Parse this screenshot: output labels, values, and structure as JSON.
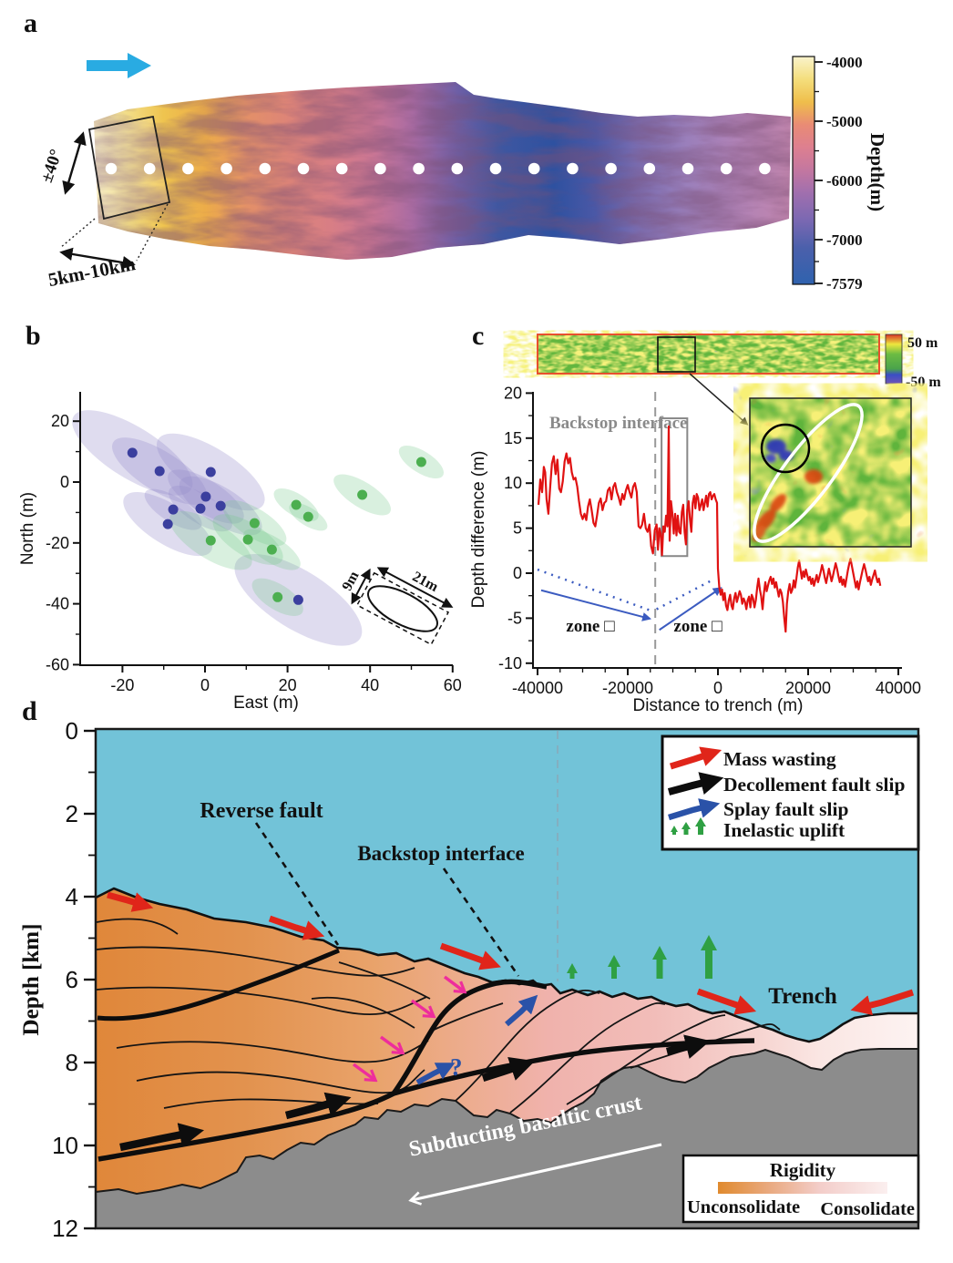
{
  "figure_labels": {
    "a": "a",
    "b": "b",
    "c": "c",
    "d": "d"
  },
  "panel_a": {
    "angle_label": "±40°",
    "width_label": "5km-10km",
    "transect_dots": 18,
    "colorbar": {
      "title": "Depth(m)",
      "tick_labels": [
        "-4000",
        "-5000",
        "-6000",
        "-7000",
        "-7579"
      ]
    }
  },
  "panel_b": {
    "xlabel": "East (m)",
    "ylabel": "North (m)",
    "x_tick_labels": [
      "-20",
      "0",
      "20",
      "40",
      "60"
    ],
    "y_tick_labels": [
      "20",
      "0",
      "-20",
      "-40",
      "-60"
    ],
    "inset": {
      "short_axis_label": "9m",
      "long_axis_label": "21m"
    }
  },
  "panel_c": {
    "strip_colorbar": {
      "top_label": "50 m",
      "bottom_label": "-50 m"
    },
    "backstop_label": "Backstop interface",
    "zone_left_label": "zone □",
    "zone_right_label": "zone □",
    "xlabel": "Distance to trench (m)",
    "ylabel": "Depth difference (m)",
    "x_tick_labels": [
      "-40000",
      "-20000",
      "0",
      "20000",
      "40000"
    ],
    "y_tick_labels": [
      "20",
      "15",
      "10",
      "5",
      "0",
      "-5",
      "-10"
    ]
  },
  "panel_d": {
    "ylabel": "Depth [km]",
    "depth_tick_labels": [
      "0",
      "2",
      "4",
      "6",
      "8",
      "10",
      "12"
    ],
    "legend": {
      "items": [
        {
          "label": "Mass wasting",
          "color": "#e0251a"
        },
        {
          "label": "Decollement fault slip",
          "color": "#0d0d0d"
        },
        {
          "label": "Splay fault slip",
          "color": "#2a52a8"
        },
        {
          "label": "Inelastic uplift",
          "color": "#2fa043"
        }
      ]
    },
    "reverse_fault_label": "Reverse fault",
    "backstop_label": "Backstop interface",
    "trench_label": "Trench",
    "subducting_label": "Subducting basaltic crust",
    "uncertainty_label": "?",
    "rigidity": {
      "title": "Rigidity",
      "left_label": "Unconsolidate",
      "right_label": "Consolidate"
    }
  },
  "chart_data": [
    {
      "type": "scatter",
      "panel": "b",
      "xlabel": "East (m)",
      "ylabel": "North (m)",
      "xlim": [
        -30,
        60
      ],
      "ylim": [
        -60,
        30
      ],
      "grid": false,
      "ellipse_angle_deg": 32,
      "series": [
        {
          "name": "blue events",
          "color": "#3b3f9e",
          "ellipse_color": "rgba(148,138,202,0.30)",
          "points": [
            {
              "x": -17.6,
              "y": 9.6,
              "major_m": 19,
              "minor_m": 7
            },
            {
              "x": -11.0,
              "y": 3.6,
              "major_m": 15,
              "minor_m": 5.5
            },
            {
              "x": 1.4,
              "y": 3.3,
              "major_m": 17,
              "minor_m": 6.5
            },
            {
              "x": 0.2,
              "y": -4.8,
              "major_m": 12,
              "minor_m": 4.5
            },
            {
              "x": -1.1,
              "y": -8.7,
              "major_m": 10,
              "minor_m": 4
            },
            {
              "x": -7.7,
              "y": -9.0,
              "major_m": 9,
              "minor_m": 3.5
            },
            {
              "x": -9.0,
              "y": -13.8,
              "major_m": 14,
              "minor_m": 5.5
            },
            {
              "x": 3.8,
              "y": -7.8,
              "major_m": 13,
              "minor_m": 5
            },
            {
              "x": 22.6,
              "y": -38.7,
              "major_m": 20,
              "minor_m": 8
            }
          ]
        },
        {
          "name": "green events",
          "color": "#4caf50",
          "ellipse_color": "rgba(120,200,140,0.28)",
          "points": [
            {
              "x": 1.4,
              "y": -19.2,
              "major_m": 13,
              "minor_m": 5
            },
            {
              "x": 10.4,
              "y": -18.9,
              "major_m": 11,
              "minor_m": 4.5
            },
            {
              "x": 12.0,
              "y": -13.5,
              "major_m": 10,
              "minor_m": 4
            },
            {
              "x": 16.2,
              "y": -22.2,
              "major_m": 9,
              "minor_m": 3.5
            },
            {
              "x": 22.1,
              "y": -7.5,
              "major_m": 7,
              "minor_m": 3
            },
            {
              "x": 25.0,
              "y": -11.4,
              "major_m": 6,
              "minor_m": 2.5
            },
            {
              "x": 17.6,
              "y": -37.8,
              "major_m": 8,
              "minor_m": 3.5
            },
            {
              "x": 38.1,
              "y": -4.2,
              "major_m": 9,
              "minor_m": 3.5
            },
            {
              "x": 52.4,
              "y": 6.6,
              "major_m": 7,
              "minor_m": 3
            }
          ]
        }
      ]
    },
    {
      "type": "line",
      "panel": "c",
      "xlabel": "Distance to trench (m)",
      "ylabel": "Depth difference (m)",
      "xlim": [
        -42000,
        42000
      ],
      "ylim": [
        -10,
        20
      ],
      "line_color": "#e01212",
      "points": [
        [
          -39800,
          7.6
        ],
        [
          -39400,
          10.4
        ],
        [
          -39000,
          9
        ],
        [
          -38600,
          11.8
        ],
        [
          -38300,
          11.2
        ],
        [
          -38000,
          8.2
        ],
        [
          -37600,
          6.6
        ],
        [
          -37200,
          9.6
        ],
        [
          -36800,
          12.2
        ],
        [
          -36400,
          13
        ],
        [
          -36000,
          11
        ],
        [
          -35600,
          12.6
        ],
        [
          -35200,
          9.4
        ],
        [
          -34800,
          9
        ],
        [
          -34400,
          10.2
        ],
        [
          -34000,
          12.4
        ],
        [
          -33600,
          13.3
        ],
        [
          -33200,
          12.2
        ],
        [
          -32800,
          12.8
        ],
        [
          -32400,
          11.2
        ],
        [
          -32000,
          10.4
        ],
        [
          -31600,
          10.6
        ],
        [
          -31200,
          9.6
        ],
        [
          -30800,
          8
        ],
        [
          -30400,
          6.6
        ],
        [
          -30000,
          6
        ],
        [
          -29600,
          6.6
        ],
        [
          -29200,
          5.9
        ],
        [
          -28800,
          7.4
        ],
        [
          -28400,
          8.2
        ],
        [
          -28000,
          7
        ],
        [
          -27600,
          5.6
        ],
        [
          -27200,
          5.2
        ],
        [
          -26800,
          6.4
        ],
        [
          -26400,
          7.8
        ],
        [
          -26000,
          8.3
        ],
        [
          -25600,
          7
        ],
        [
          -25200,
          7.8
        ],
        [
          -24800,
          8
        ],
        [
          -24400,
          9.2
        ],
        [
          -24000,
          9.5
        ],
        [
          -23600,
          8.2
        ],
        [
          -23200,
          9.6
        ],
        [
          -22800,
          10
        ],
        [
          -22400,
          9
        ],
        [
          -22000,
          8.4
        ],
        [
          -21600,
          7.6
        ],
        [
          -21200,
          8.8
        ],
        [
          -20800,
          8.2
        ],
        [
          -20400,
          9.2
        ],
        [
          -20000,
          9.8
        ],
        [
          -19600,
          9
        ],
        [
          -19200,
          8.4
        ],
        [
          -18800,
          9.6
        ],
        [
          -18400,
          10
        ],
        [
          -18000,
          9
        ],
        [
          -17600,
          5.2
        ],
        [
          -17200,
          5
        ],
        [
          -16800,
          5.4
        ],
        [
          -16400,
          6.6
        ],
        [
          -16000,
          5
        ],
        [
          -15600,
          4.6
        ],
        [
          -15200,
          5.4
        ],
        [
          -14800,
          3
        ],
        [
          -14400,
          2.2
        ],
        [
          -14000,
          4.8
        ],
        [
          -13600,
          5.4
        ],
        [
          -13300,
          2.6
        ],
        [
          -13000,
          5
        ],
        [
          -12700,
          4.4
        ],
        [
          -12400,
          2
        ],
        [
          -12100,
          5.2
        ],
        [
          -11800,
          4.6
        ],
        [
          -11500,
          6.4
        ],
        [
          -11200,
          5.2
        ],
        [
          -10900,
          16.3
        ],
        [
          -10700,
          3.6
        ],
        [
          -10400,
          8
        ],
        [
          -10100,
          6.6
        ],
        [
          -9800,
          4.4
        ],
        [
          -9500,
          6.6
        ],
        [
          -9200,
          4.2
        ],
        [
          -8900,
          6.4
        ],
        [
          -8600,
          4.6
        ],
        [
          -8300,
          4.4
        ],
        [
          -8000,
          6.8
        ],
        [
          -7700,
          7.6
        ],
        [
          -7400,
          4.6
        ],
        [
          -7100,
          3.2
        ],
        [
          -6800,
          7
        ],
        [
          -6500,
          8
        ],
        [
          -6200,
          6
        ],
        [
          -5900,
          4.6
        ],
        [
          -5600,
          7.8
        ],
        [
          -5300,
          8.6
        ],
        [
          -5000,
          7.2
        ],
        [
          -4700,
          8.8
        ],
        [
          -4400,
          8.4
        ],
        [
          -4100,
          7
        ],
        [
          -3800,
          7.6
        ],
        [
          -3500,
          8.2
        ],
        [
          -3200,
          7
        ],
        [
          -2900,
          7.8
        ],
        [
          -2600,
          8.6
        ],
        [
          -2300,
          7.4
        ],
        [
          -2000,
          8.8
        ],
        [
          -1700,
          9
        ],
        [
          -1400,
          8.2
        ],
        [
          -1100,
          8.6
        ],
        [
          -800,
          8.8
        ],
        [
          -500,
          8.2
        ],
        [
          -200,
          7.8
        ],
        [
          0,
          0.5
        ],
        [
          300,
          -1.6
        ],
        [
          600,
          -2.4
        ],
        [
          900,
          -1.8
        ],
        [
          1200,
          -3
        ],
        [
          1500,
          -2.2
        ],
        [
          1800,
          -3.6
        ],
        [
          2100,
          -4.1
        ],
        [
          2400,
          -3
        ],
        [
          2700,
          -2.4
        ],
        [
          3000,
          -3.6
        ],
        [
          3300,
          -4
        ],
        [
          3600,
          -2.8
        ],
        [
          3900,
          -2.2
        ],
        [
          4200,
          -3.2
        ],
        [
          4500,
          -2.6
        ],
        [
          4800,
          -2
        ],
        [
          5100,
          -2.4
        ],
        [
          5400,
          -3.4
        ],
        [
          5700,
          -2.8
        ],
        [
          6000,
          -3.2
        ],
        [
          6300,
          -4
        ],
        [
          6600,
          -3
        ],
        [
          6900,
          -2.6
        ],
        [
          7200,
          -3.8
        ],
        [
          7500,
          -2.4
        ],
        [
          7800,
          -2.8
        ],
        [
          8100,
          -3.8
        ],
        [
          8400,
          -3
        ],
        [
          8700,
          -1.6
        ],
        [
          9000,
          -0.6
        ],
        [
          9300,
          -1.8
        ],
        [
          9600,
          -2.6
        ],
        [
          9900,
          -4
        ],
        [
          10200,
          -2.2
        ],
        [
          10500,
          -1
        ],
        [
          10800,
          -2
        ],
        [
          11100,
          -1.4
        ],
        [
          11400,
          -0.8
        ],
        [
          11700,
          -0.4
        ],
        [
          12000,
          -1.2
        ],
        [
          12300,
          -0.6
        ],
        [
          12600,
          -1.6
        ],
        [
          12900,
          -1
        ],
        [
          13200,
          -1.8
        ],
        [
          13500,
          -2.6
        ],
        [
          13800,
          -1.8
        ],
        [
          14100,
          -2.2
        ],
        [
          14400,
          -3.2
        ],
        [
          14700,
          -5
        ],
        [
          15000,
          -6.5
        ],
        [
          15300,
          -3.4
        ],
        [
          15600,
          -2
        ],
        [
          15900,
          -1.2
        ],
        [
          16200,
          -2.2
        ],
        [
          16500,
          -1.8
        ],
        [
          16800,
          -0.8
        ],
        [
          17100,
          -1.6
        ],
        [
          17400,
          -0.6
        ],
        [
          17700,
          0.6
        ],
        [
          18000,
          1.4
        ],
        [
          18300,
          0.4
        ],
        [
          18600,
          -0.6
        ],
        [
          18900,
          0.2
        ],
        [
          19200,
          -0.4
        ],
        [
          19500,
          0.4
        ],
        [
          19800,
          -0.2
        ],
        [
          20100,
          -0.8
        ],
        [
          20400,
          -0.4
        ],
        [
          20700,
          -1.2
        ],
        [
          21000,
          -0.6
        ],
        [
          21300,
          -1.4
        ],
        [
          21600,
          -0.8
        ],
        [
          21900,
          -0.2
        ],
        [
          22200,
          -1
        ],
        [
          22500,
          -0.4
        ],
        [
          22800,
          0.2
        ],
        [
          23100,
          0.9
        ],
        [
          23400,
          0.3
        ],
        [
          23700,
          -0.5
        ],
        [
          24000,
          -1.1
        ],
        [
          24300,
          -0.3
        ],
        [
          24600,
          0.5
        ],
        [
          24900,
          -0.2
        ],
        [
          25200,
          -0.9
        ],
        [
          25500,
          -0.3
        ],
        [
          25800,
          0.4
        ],
        [
          26100,
          1.1
        ],
        [
          26400,
          0.5
        ],
        [
          26700,
          -0.3
        ],
        [
          27000,
          -1
        ],
        [
          27300,
          -0.4
        ],
        [
          27600,
          -1.3
        ],
        [
          27900,
          -0.7
        ],
        [
          28200,
          -1.5
        ],
        [
          28500,
          -0.6
        ],
        [
          28800,
          0.3
        ],
        [
          29100,
          1
        ],
        [
          29400,
          1.6
        ],
        [
          29700,
          0.8
        ],
        [
          30000,
          0
        ],
        [
          30300,
          -0.8
        ],
        [
          30600,
          -1.6
        ],
        [
          30900,
          -0.9
        ],
        [
          31200,
          -1.8
        ],
        [
          31500,
          -1
        ],
        [
          31800,
          -0.3
        ],
        [
          32100,
          0.4
        ],
        [
          32400,
          1
        ],
        [
          32700,
          0.4
        ],
        [
          33000,
          -0.3
        ],
        [
          33300,
          -0.9
        ],
        [
          33600,
          -0.4
        ],
        [
          33900,
          -1.3
        ],
        [
          34200,
          -0.7
        ],
        [
          34500,
          -0.2
        ],
        [
          34800,
          0.3
        ],
        [
          35100,
          -0.4
        ],
        [
          35400,
          -1
        ],
        [
          35700,
          -0.6
        ],
        [
          36000,
          -1.4
        ]
      ],
      "annotations": {
        "vline_x": -13900,
        "box": {
          "x1": -12500,
          "y1": 1.9,
          "x2": -6800,
          "y2": 17.2
        },
        "dotted_trends": [
          [
            [
              -40000,
              0.4
            ],
            [
              -15200,
              -4.1
            ]
          ],
          [
            [
              -13600,
              -4
            ],
            [
              -1000,
              -0.7
            ]
          ]
        ],
        "arrows": [
          [
            [
              -39200,
              -1.9
            ],
            [
              -16300,
              -4.9
            ]
          ],
          [
            [
              -13000,
              -6.3
            ],
            [
              -400,
              -2
            ]
          ]
        ]
      }
    }
  ]
}
